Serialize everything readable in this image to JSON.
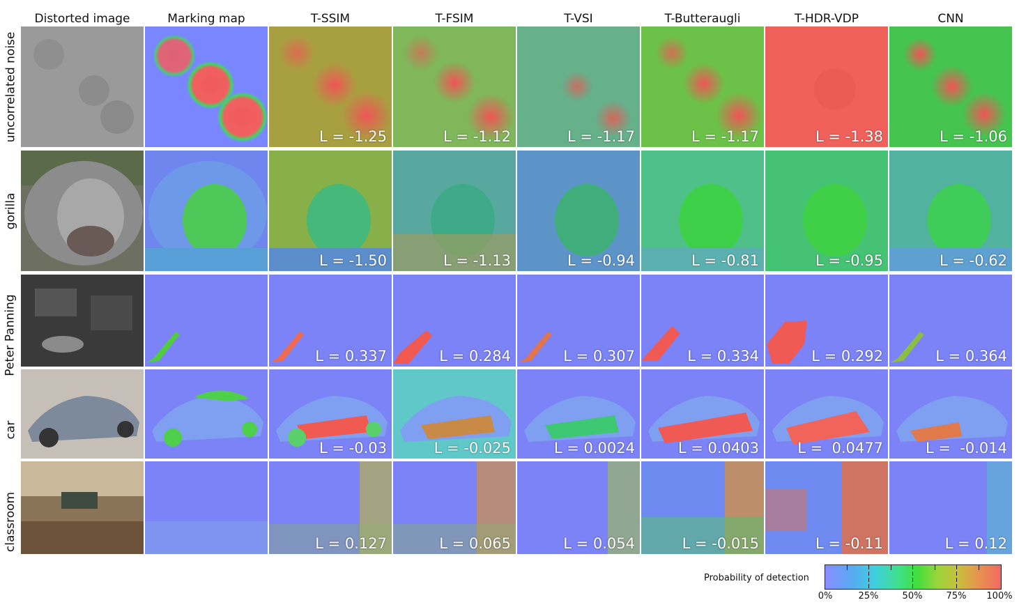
{
  "columns": [
    "Distorted image",
    "Marking map",
    "T-SSIM",
    "T-FSIM",
    "T-VSI",
    "T-Butteraugli",
    "T-HDR-VDP",
    "CNN"
  ],
  "rows": [
    {
      "label": "uncorrelated noise",
      "scores": [
        "L = -1.25",
        "L = -1.12",
        "L = -1.17",
        "L = -1.17",
        "L = -1.38",
        "L = -1.06"
      ]
    },
    {
      "label": "gorilla",
      "scores": [
        "L = -1.50",
        "L = -1.13",
        "L = -0.94",
        "L = -0.81",
        "L = -0.95",
        "L = -0.62"
      ]
    },
    {
      "label": "Peter Panning",
      "scores": [
        "L = 0.337",
        "L = 0.284",
        "L = 0.307",
        "L = 0.334",
        "L = 0.292",
        "L = 0.364"
      ]
    },
    {
      "label": "car",
      "scores": [
        "L = -0.03",
        "L = -0.025",
        "L = 0.0024",
        "L = 0.0403",
        "L =  0.0477",
        "L =  -0.014"
      ]
    },
    {
      "label": "classroom",
      "scores": [
        "L = 0.127",
        "L = 0.065",
        "L = 0.054",
        "L = -0.015",
        "L = -0.11",
        "L = 0.12"
      ]
    }
  ],
  "legend": {
    "title": "Probability of detection",
    "ticks": [
      "0%",
      "25%",
      "50%",
      "75%",
      "100%"
    ]
  }
}
